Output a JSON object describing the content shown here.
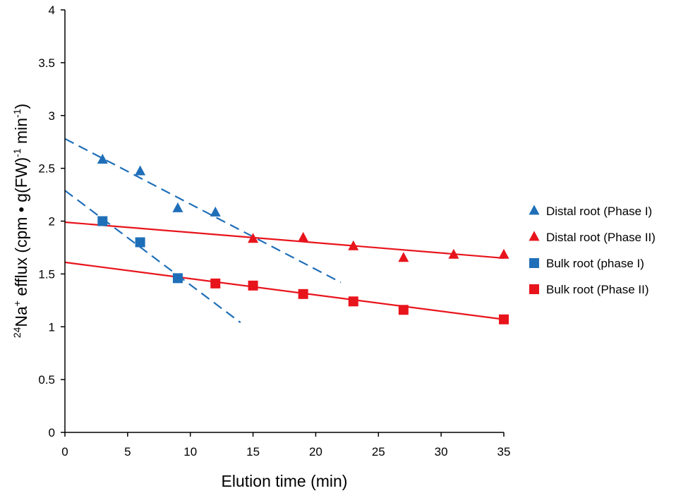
{
  "chart_data": {
    "type": "scatter",
    "title": "",
    "xlabel": "Elution time (min)",
    "ylabel": {
      "sup1": "24",
      "part1": "Na",
      "sup2": "+",
      "part2": " efflux (cpm • g(FW)",
      "sup3": "-1",
      "part3": " min",
      "sup4": "-1",
      "part4": ")"
    },
    "xlim": [
      0,
      35
    ],
    "ylim": [
      0,
      4
    ],
    "xticks": [
      "0",
      "5",
      "10",
      "15",
      "20",
      "25",
      "30",
      "35"
    ],
    "yticks": [
      "0",
      "0.5",
      "1",
      "1.5",
      "2",
      "2.5",
      "3",
      "3.5",
      "4"
    ],
    "grid": false,
    "legend_position": "right",
    "colors": {
      "blue": "#1f6fb8",
      "red": "#e8141c",
      "axis": "#000000"
    },
    "series": [
      {
        "name": "Distal root (Phase I)",
        "marker": "triangle",
        "color": "#1f6fb8",
        "points": [
          [
            3,
            2.58
          ],
          [
            6,
            2.47
          ],
          [
            9,
            2.12
          ],
          [
            12,
            2.08
          ]
        ],
        "fit": {
          "x": [
            0,
            22
          ],
          "y": [
            2.78,
            1.42
          ],
          "style": "dashed"
        }
      },
      {
        "name": "Distal root (Phase II)",
        "marker": "triangle",
        "color": "#e8141c",
        "points": [
          [
            15,
            1.83
          ],
          [
            19,
            1.84
          ],
          [
            23,
            1.76
          ],
          [
            27,
            1.65
          ],
          [
            31,
            1.68
          ],
          [
            35,
            1.68
          ]
        ],
        "fit": {
          "x": [
            0,
            35
          ],
          "y": [
            1.99,
            1.65
          ],
          "style": "solid"
        }
      },
      {
        "name": "Bulk root (phase I)",
        "marker": "square",
        "color": "#1f6fb8",
        "points": [
          [
            3,
            2.0
          ],
          [
            6,
            1.8
          ],
          [
            9,
            1.46
          ]
        ],
        "fit": {
          "x": [
            0,
            14
          ],
          "y": [
            2.29,
            1.04
          ],
          "style": "dashed"
        }
      },
      {
        "name": "Bulk root (Phase II)",
        "marker": "square",
        "color": "#e8141c",
        "points": [
          [
            12,
            1.41
          ],
          [
            15,
            1.39
          ],
          [
            19,
            1.31
          ],
          [
            23,
            1.24
          ],
          [
            27,
            1.16
          ],
          [
            35,
            1.07
          ]
        ],
        "fit": {
          "x": [
            0,
            35
          ],
          "y": [
            1.61,
            1.07
          ],
          "style": "solid"
        }
      }
    ]
  }
}
